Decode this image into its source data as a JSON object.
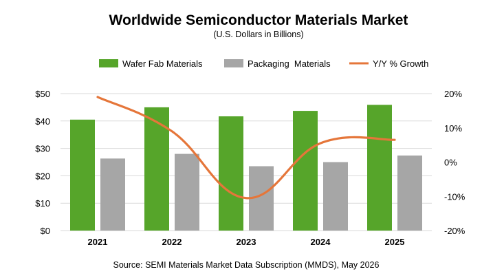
{
  "chart_data": {
    "type": "bar",
    "title": "Worldwide Semiconductor Materials Market",
    "subtitle": "(U.S. Dollars in Billions)",
    "categories": [
      "2021",
      "2022",
      "2023",
      "2024",
      "2025"
    ],
    "series": [
      {
        "name": "Wafer Fab Materials",
        "kind": "bar",
        "axis": "left",
        "color": "#56a52a",
        "values": [
          40.5,
          45.0,
          41.7,
          43.7,
          45.9
        ]
      },
      {
        "name": "Packaging  Materials",
        "kind": "bar",
        "axis": "left",
        "color": "#a6a6a6",
        "values": [
          26.3,
          28.0,
          23.5,
          25.0,
          27.4
        ]
      },
      {
        "name": "Y/Y % Growth",
        "kind": "line",
        "axis": "right",
        "color": "#e5763a",
        "values": [
          19,
          9,
          -10.5,
          5.5,
          6.5
        ]
      }
    ],
    "left_axis": {
      "ticks": [
        "$0",
        "$10",
        "$20",
        "$30",
        "$40",
        "$50"
      ],
      "ylim": [
        0,
        50
      ]
    },
    "right_axis": {
      "ticks": [
        "-20%",
        "-10%",
        "0%",
        "10%",
        "20%"
      ],
      "ylim": [
        -20,
        20
      ]
    },
    "grid": true,
    "legend_position": "top",
    "source": "Source:  SEMI Materials Market Data Subscription (MMDS), May 2026"
  }
}
